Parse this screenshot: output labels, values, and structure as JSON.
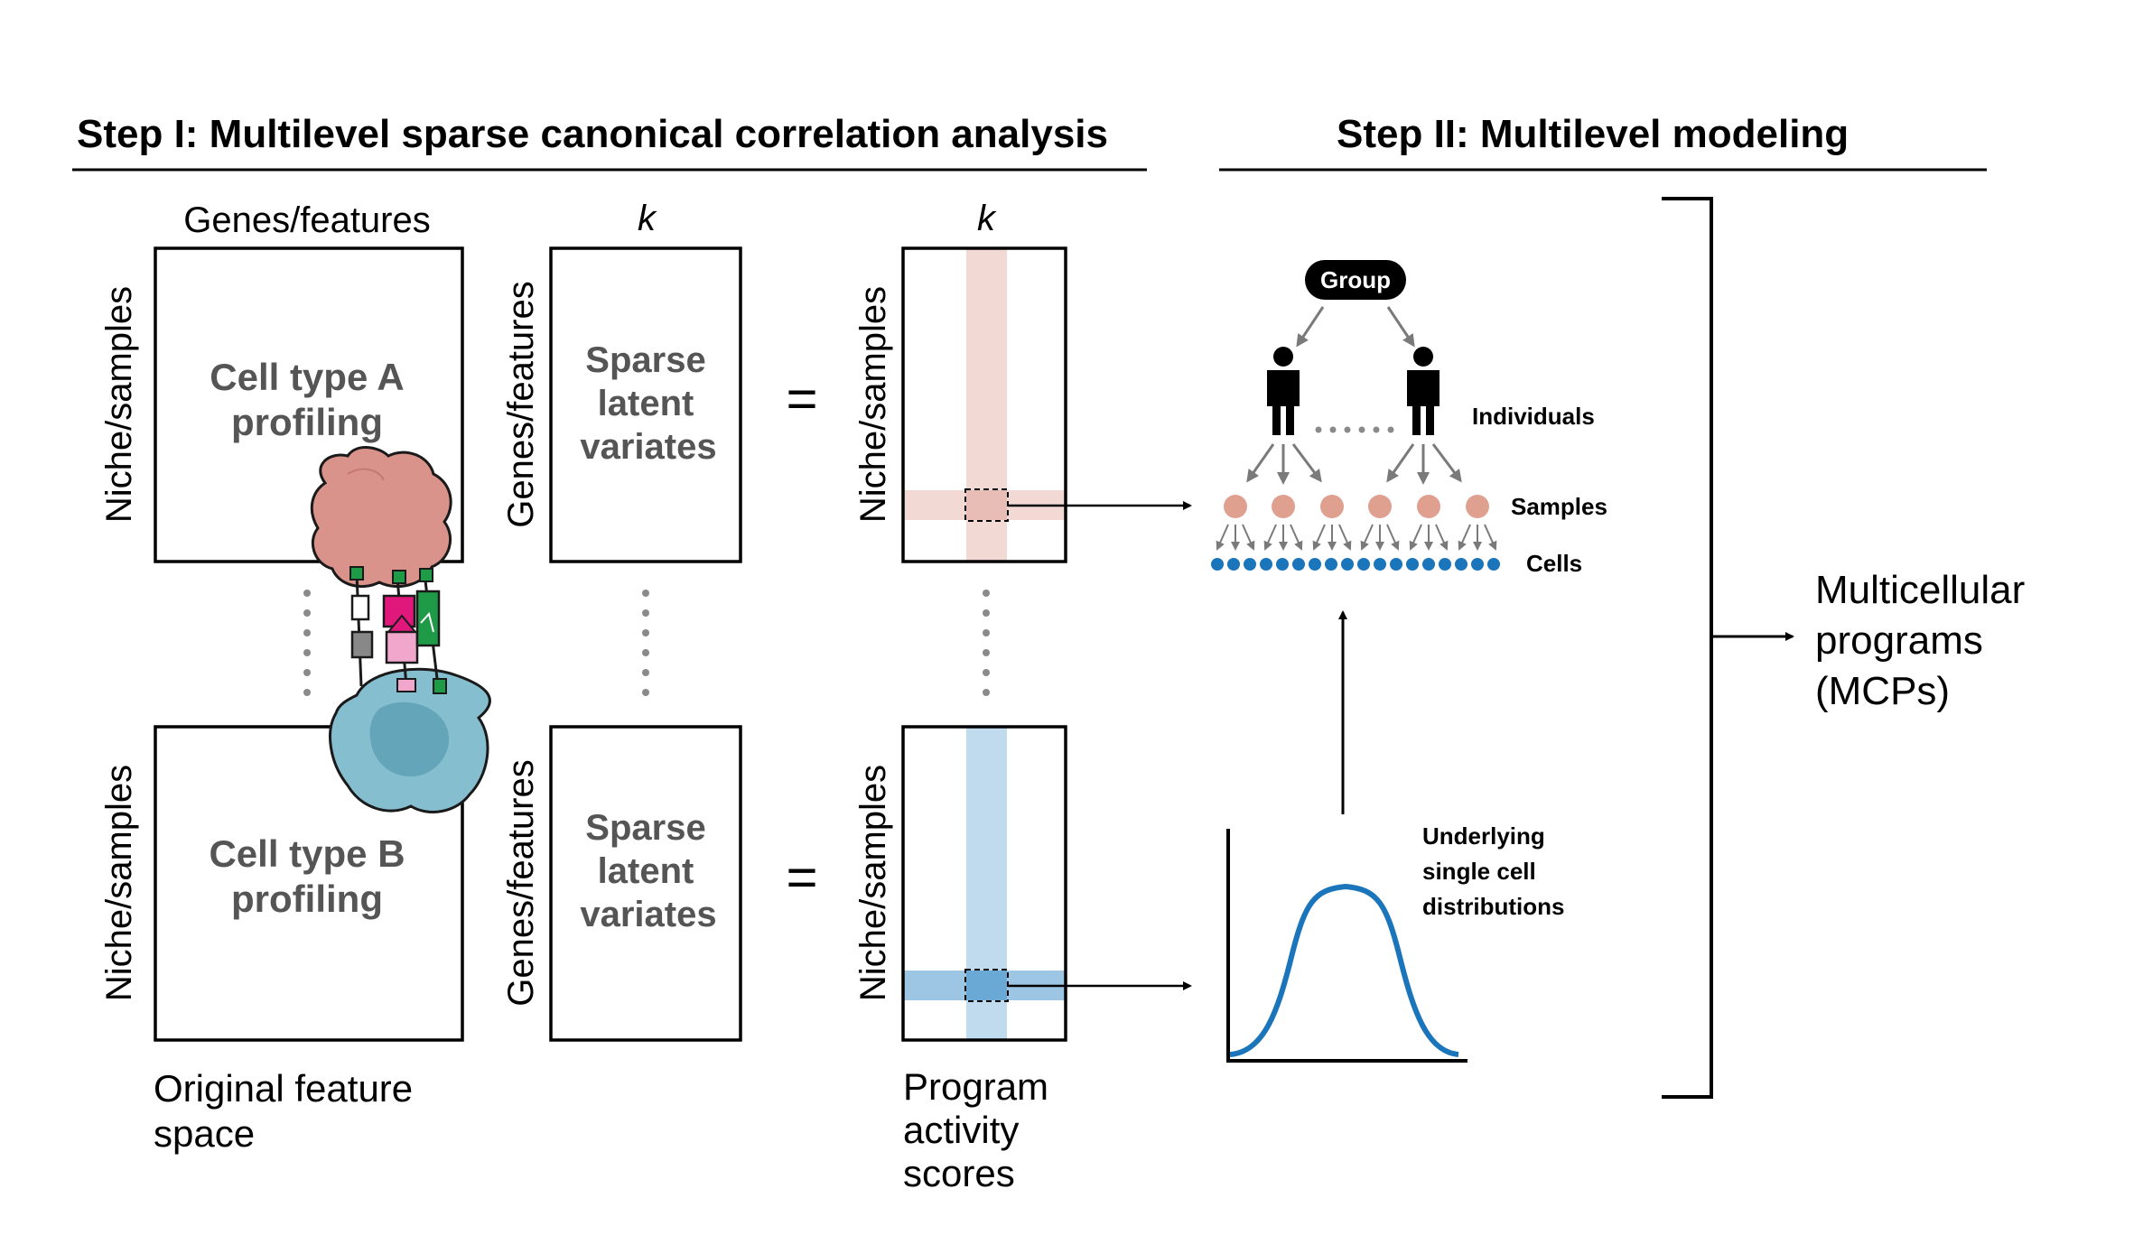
{
  "step1": {
    "title": "Step I: Multilevel sparse canonical correlation analysis"
  },
  "step2": {
    "title": "Step II: Multilevel modeling"
  },
  "matrixA": {
    "top_label": "Genes/features",
    "side_label": "Niche/samples",
    "line1": "Cell type A",
    "line2": "profiling"
  },
  "matrixB": {
    "side_label": "Niche/samples",
    "line1": "Cell type B",
    "line2": "profiling"
  },
  "original_caption": {
    "line1": "Original feature",
    "line2": "space"
  },
  "sparse_top": {
    "top_label": "k",
    "side_label": "Genes/features",
    "line1": "Sparse",
    "line2": "latent",
    "line3": "variates"
  },
  "sparse_bottom": {
    "side_label": "Genes/features",
    "line1": "Sparse",
    "line2": "latent",
    "line3": "variates"
  },
  "equals": {
    "top": "=",
    "bottom": "="
  },
  "program_top": {
    "top_label": "k",
    "side_label": "Niche/samples"
  },
  "program_bottom": {
    "side_label": "Niche/samples"
  },
  "program_caption": {
    "line1": "Program",
    "line2": "activity",
    "line3": "scores"
  },
  "hierarchy": {
    "group": "Group",
    "individuals": "Individuals",
    "samples": "Samples",
    "cells": "Cells"
  },
  "distribution": {
    "line1": "Underlying",
    "line2": "single cell",
    "line3": "distributions"
  },
  "result": {
    "line1": "Multicellular",
    "line2": "programs",
    "line3": "(MCPs)"
  },
  "colors": {
    "pink_band": "#f3d9d4",
    "pink_cell": "#e0a090",
    "blue_band": "#c0dbee",
    "blue_band_dark": "#9cc6e4",
    "blue_dot": "#1b75bb",
    "curve": "#1b75bb",
    "cell_a": "#d9938a",
    "cell_b": "#85bfcf",
    "gray_text": "#555555",
    "receptor_magenta": "#e0187c",
    "receptor_pink": "#f1a6cc",
    "receptor_green": "#1f9a47"
  }
}
